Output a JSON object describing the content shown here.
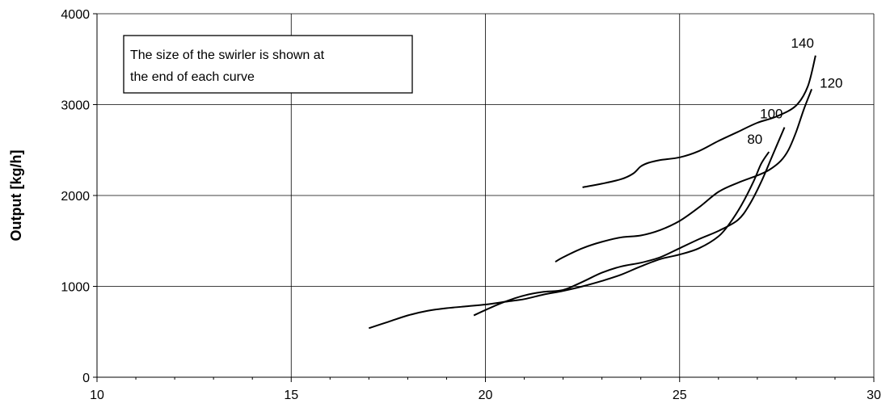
{
  "chart_data": {
    "type": "line",
    "title": "",
    "xlabel": "",
    "ylabel": "Output [kg/h]",
    "xlim": [
      10,
      30
    ],
    "ylim": [
      0,
      4000
    ],
    "xticks": [
      10,
      15,
      20,
      25,
      30
    ],
    "yticks": [
      0,
      1000,
      2000,
      3000,
      4000
    ],
    "grid": true,
    "annotation": [
      "The size of the swirler is shown at",
      "the end of each curve"
    ],
    "series": [
      {
        "name": "80",
        "x": [
          17.0,
          17.5,
          18.0,
          18.5,
          19.0,
          19.5,
          20.0,
          20.5,
          21.0,
          21.5,
          22.0,
          22.5,
          23.0,
          23.5,
          24.0,
          24.5,
          25.0,
          25.5,
          26.0,
          26.3,
          26.6,
          26.9,
          27.1,
          27.3
        ],
        "y": [
          540,
          610,
          680,
          730,
          760,
          780,
          800,
          830,
          860,
          910,
          950,
          1000,
          1060,
          1130,
          1220,
          1300,
          1350,
          1420,
          1550,
          1700,
          1900,
          2150,
          2350,
          2480
        ]
      },
      {
        "name": "100",
        "x": [
          19.7,
          20.0,
          20.5,
          21.0,
          21.5,
          22.0,
          22.5,
          23.0,
          23.5,
          24.0,
          24.5,
          25.0,
          25.5,
          26.0,
          26.5,
          26.8,
          27.1,
          27.4,
          27.7
        ],
        "y": [
          680,
          740,
          830,
          900,
          940,
          960,
          1050,
          1150,
          1220,
          1260,
          1320,
          1420,
          1520,
          1610,
          1730,
          1900,
          2150,
          2450,
          2750
        ]
      },
      {
        "name": "120",
        "x": [
          21.8,
          22.0,
          22.5,
          23.0,
          23.5,
          24.0,
          24.5,
          25.0,
          25.5,
          26.0,
          26.5,
          27.0,
          27.3,
          27.6,
          27.8,
          28.0,
          28.2,
          28.4
        ],
        "y": [
          1270,
          1320,
          1420,
          1490,
          1540,
          1560,
          1620,
          1720,
          1870,
          2040,
          2140,
          2220,
          2280,
          2380,
          2500,
          2700,
          2950,
          3170
        ]
      },
      {
        "name": "140",
        "x": [
          22.5,
          23.0,
          23.5,
          23.8,
          24.0,
          24.2,
          24.5,
          25.0,
          25.5,
          26.0,
          26.5,
          27.0,
          27.5,
          28.0,
          28.3,
          28.5
        ],
        "y": [
          2090,
          2130,
          2180,
          2240,
          2320,
          2360,
          2390,
          2420,
          2490,
          2600,
          2700,
          2800,
          2870,
          2990,
          3200,
          3540
        ]
      }
    ]
  }
}
